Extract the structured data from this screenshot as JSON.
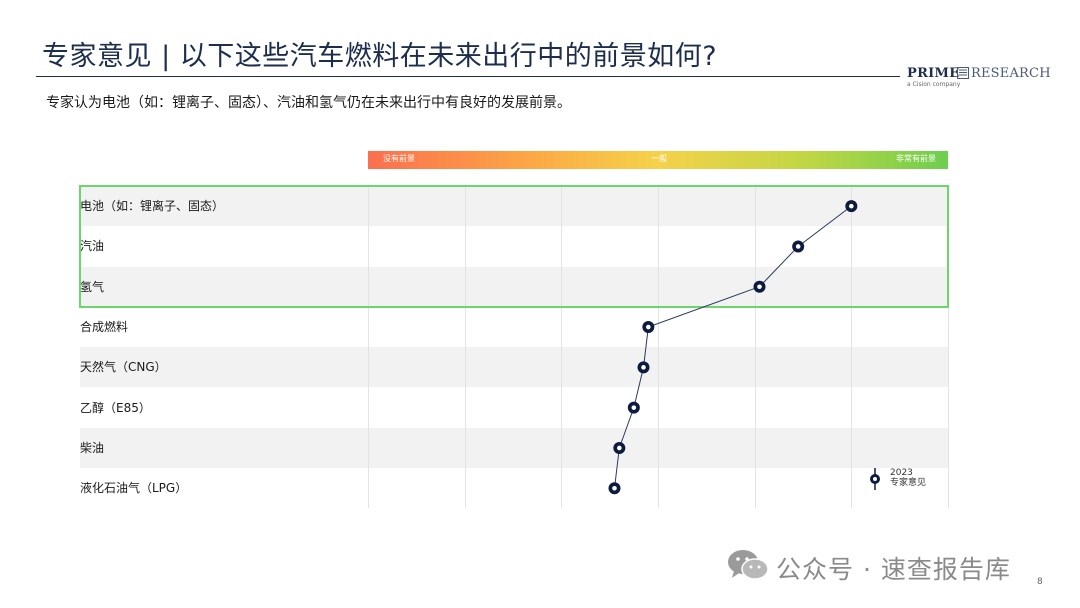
{
  "title": "专家意见 | 以下这些汽车燃料在未来出行中的前景如何?",
  "subtitle": "专家认为电池（如：锂离子、固态）、汽油和氢气仍在未来出行中有良好的发展前景。",
  "logo": {
    "prime": "PRIME",
    "research": "RESEARCH",
    "tagline": "a Cision company"
  },
  "colors": {
    "title": "#1c2d4d",
    "highlight_box": "#6cd66a",
    "marker": "#0d1b3e",
    "scale_low": "#fb6f4e",
    "scale_mid": "#f5d24a",
    "scale_high": "#6dce4e"
  },
  "chart_data": {
    "type": "line",
    "orientation": "horizontal-dot-plot",
    "scale_labels": [
      "没有前景",
      "一般",
      "非常有前景"
    ],
    "xlim": [
      0,
      6
    ],
    "grid": true,
    "categories": [
      "电池（如：锂离子、固态）",
      "汽油",
      "氢气",
      "合成燃料",
      "天然气（CNG）",
      "乙醇（E85）",
      "柴油",
      "液化石油气（LPG）"
    ],
    "series": [
      {
        "name": "2023 专家意见",
        "values": [
          5.0,
          4.45,
          4.05,
          2.9,
          2.85,
          2.75,
          2.6,
          2.55
        ]
      }
    ],
    "highlighted_categories": [
      "电池（如：锂离子、固态）",
      "汽油",
      "氢气"
    ],
    "legend": {
      "year": "2023",
      "label": "专家意见",
      "position": "bottom-right"
    }
  },
  "footer": {
    "watermark": "公众号 · 速查报告库",
    "page": "8"
  }
}
